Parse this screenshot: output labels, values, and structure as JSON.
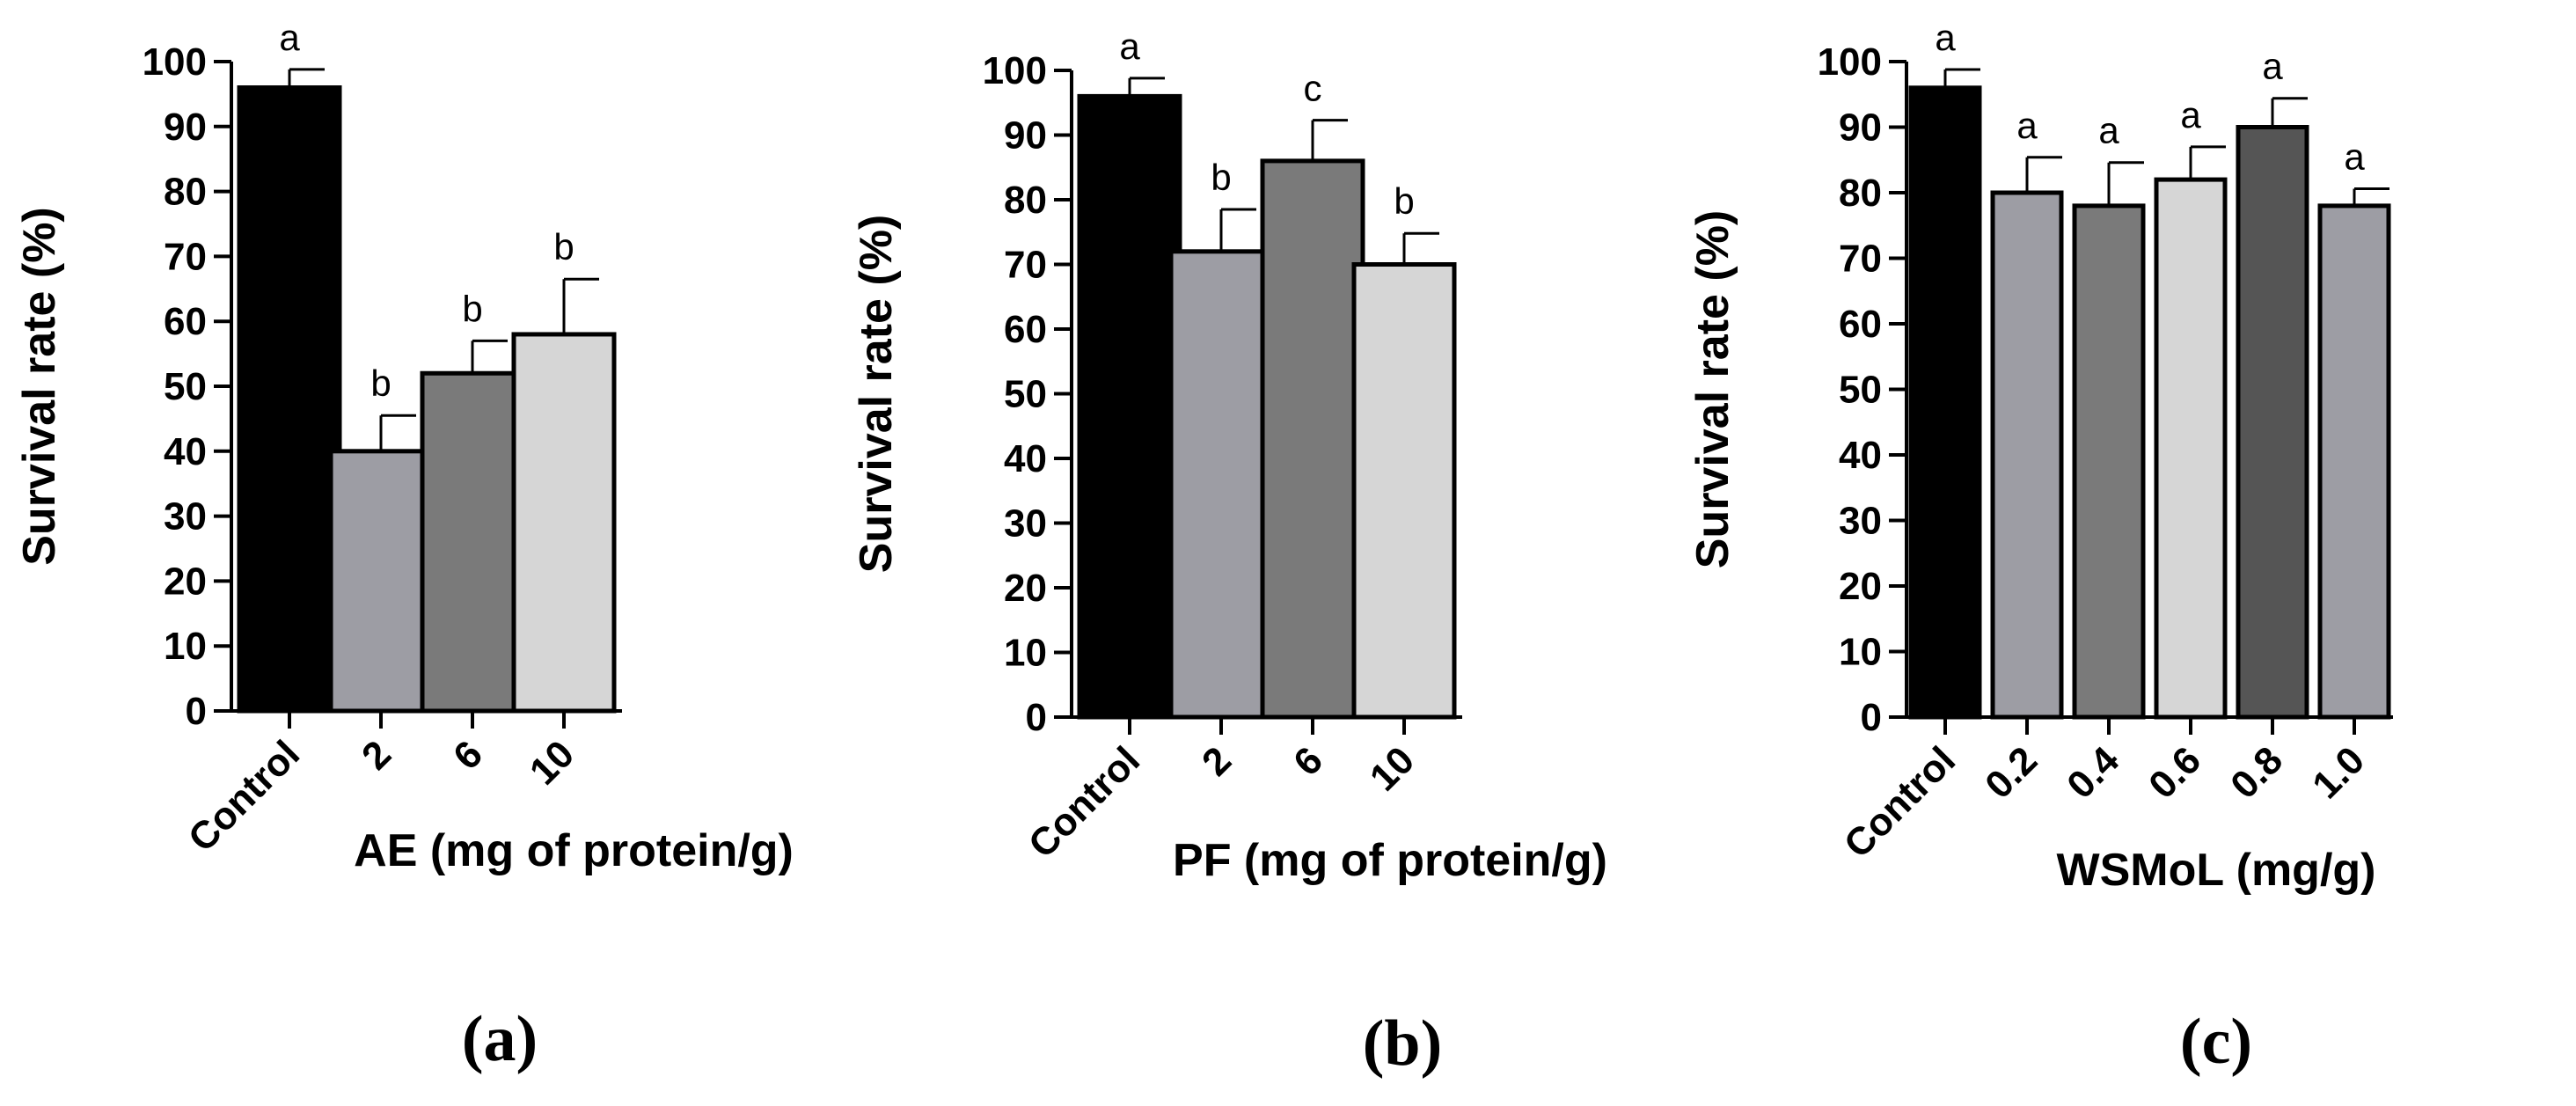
{
  "chart_data": [
    {
      "type": "bar",
      "panel_label": "(a)",
      "ylabel": "Survival rate (%)",
      "xlabel": "AE (mg of protein/g)",
      "ylim": [
        0,
        100
      ],
      "yticks": [
        "0",
        "10",
        "20",
        "30",
        "40",
        "50",
        "60",
        "70",
        "80",
        "90",
        "100"
      ],
      "categories": [
        "Control",
        "2",
        "6",
        "10"
      ],
      "values": [
        96,
        40,
        52,
        58
      ],
      "errors": [
        2.8,
        5.5,
        5.0,
        8.5
      ],
      "letters": [
        "a",
        "b",
        "b",
        "b"
      ],
      "colors": [
        "#000000",
        "#9d9da4",
        "#7a7a7a",
        "#d6d6d6"
      ]
    },
    {
      "type": "bar",
      "panel_label": "(b)",
      "ylabel": "Survival rate (%)",
      "xlabel": "PF (mg of protein/g)",
      "ylim": [
        0,
        100
      ],
      "yticks": [
        "0",
        "10",
        "20",
        "30",
        "40",
        "50",
        "60",
        "70",
        "80",
        "90",
        "100"
      ],
      "categories": [
        "Control",
        "2",
        "6",
        "10"
      ],
      "values": [
        96,
        72,
        86,
        70
      ],
      "errors": [
        2.8,
        6.5,
        6.3,
        4.8
      ],
      "letters": [
        "a",
        "b",
        "c",
        "b"
      ],
      "colors": [
        "#000000",
        "#9d9da4",
        "#7a7a7a",
        "#d6d6d6"
      ]
    },
    {
      "type": "bar",
      "panel_label": "(c)",
      "ylabel": "Survival rate (%)",
      "xlabel": "WSMoL (mg/g)",
      "ylim": [
        0,
        100
      ],
      "yticks": [
        "0",
        "10",
        "20",
        "30",
        "40",
        "50",
        "60",
        "70",
        "80",
        "90",
        "100"
      ],
      "categories": [
        "Control",
        "0.2",
        "0.4",
        "0.6",
        "0.8",
        "1.0"
      ],
      "values": [
        96,
        80,
        78,
        82,
        90,
        78
      ],
      "errors": [
        2.8,
        5.4,
        6.6,
        5.0,
        4.4,
        2.6
      ],
      "letters": [
        "a",
        "a",
        "a",
        "a",
        "a",
        "a"
      ],
      "colors": [
        "#000000",
        "#9d9da4",
        "#7a7a7a",
        "#d6d6d6",
        "#555555",
        "#9d9da4"
      ]
    }
  ]
}
